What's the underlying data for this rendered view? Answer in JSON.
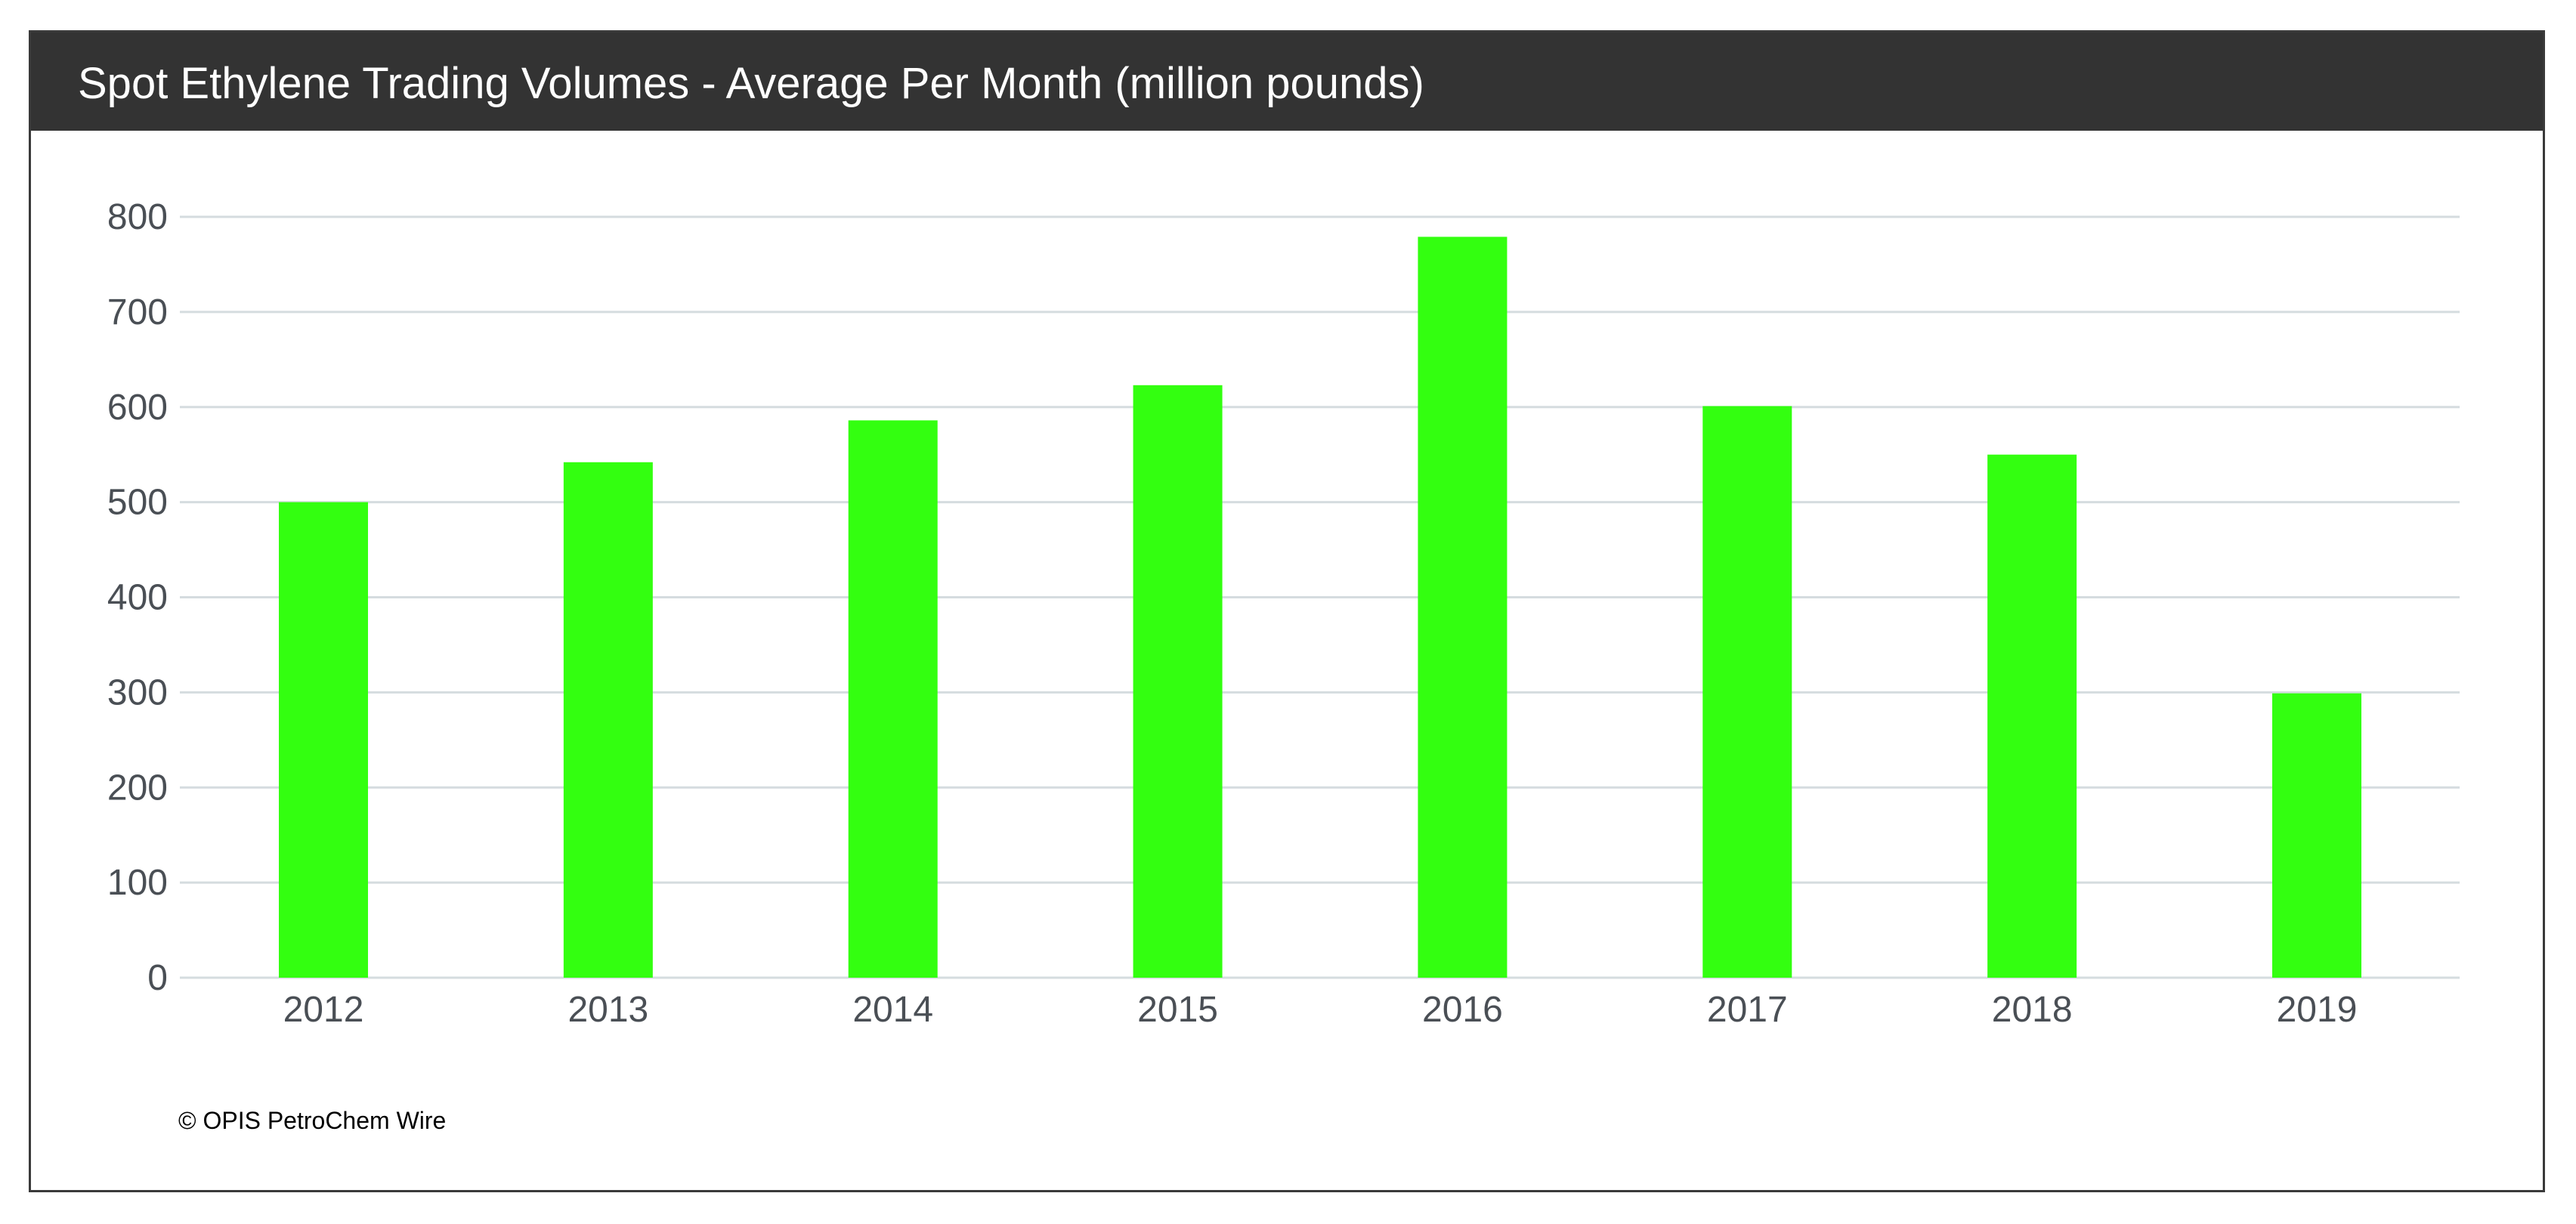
{
  "colors": {
    "header_bg": "#333333",
    "bar": "#33ff10",
    "grid": "#d5dcdf",
    "tick_text": "#4a4f55"
  },
  "chart_data": {
    "type": "bar",
    "title": "Spot Ethylene Trading Volumes - Average Per Month (million pounds)",
    "categories": [
      "2012",
      "2013",
      "2014",
      "2015",
      "2016",
      "2017",
      "2018",
      "2019"
    ],
    "values": [
      500,
      542,
      586,
      623,
      779,
      601,
      550,
      299
    ],
    "xlabel": "",
    "ylabel": "",
    "ylim": [
      0,
      800
    ],
    "yticks": [
      "0",
      "100",
      "200",
      "300",
      "400",
      "500",
      "600",
      "700",
      "800"
    ],
    "grid": true,
    "legend": "none"
  },
  "footer": {
    "copyright": "© OPIS PetroChem Wire"
  }
}
